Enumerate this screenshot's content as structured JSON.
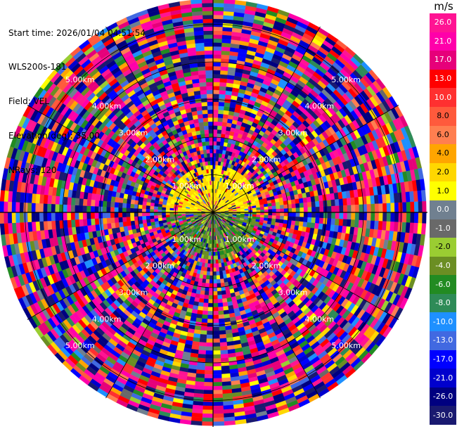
{
  "header": {
    "start_time": "Start time: 2026/01/04 04:51:54",
    "instrument": "WLS200s-181",
    "field": "Field: VEL",
    "elevation": "Elevation(deg): 35.00",
    "nrays": "NRays: 120"
  },
  "colorbar": {
    "unit": "m/s",
    "ticks": [
      "26.0",
      "21.0",
      "17.0",
      "13.0",
      "10.0",
      "8.0",
      "6.0",
      "4.0",
      "2.0",
      "1.0",
      "0.0",
      "-1.0",
      "-2.0",
      "-4.0",
      "-6.0",
      "-8.0",
      "-10.0",
      "-13.0",
      "-17.0",
      "-21.0",
      "-26.0",
      "-30.0"
    ],
    "colors": [
      "#ff1493",
      "#ff00aa",
      "#e6007a",
      "#ff0000",
      "#ff3030",
      "#ff5a3c",
      "#ff7f50",
      "#ffa500",
      "#ffd700",
      "#ffff00",
      "#708090",
      "#696969",
      "#9acd32",
      "#6b8e23",
      "#228b22",
      "#2e8b57",
      "#1e90ff",
      "#4169e1",
      "#0000ff",
      "#0000cd",
      "#000080",
      "#191970"
    ]
  },
  "chart_data": {
    "type": "heatmap",
    "projection": "polar PPI",
    "field": "VEL",
    "units": "m/s",
    "nrays": 120,
    "elevation_deg": 35.0,
    "range_rings_km": [
      1.0,
      2.0,
      3.0,
      4.0,
      5.0
    ],
    "range_labels": [
      "1.00km",
      "2.00km",
      "3.00km",
      "4.00km",
      "5.00km"
    ],
    "max_range_km": 5.7,
    "gate_km": 0.105,
    "value_range": [
      -30.0,
      30.0
    ],
    "inner_region": {
      "max_km": 1.2,
      "dominant_north": [
        1.0,
        4.0
      ],
      "dominant_south": [
        -6.0,
        0.0
      ]
    },
    "outer_region": {
      "distribution": "mixed full range"
    }
  }
}
